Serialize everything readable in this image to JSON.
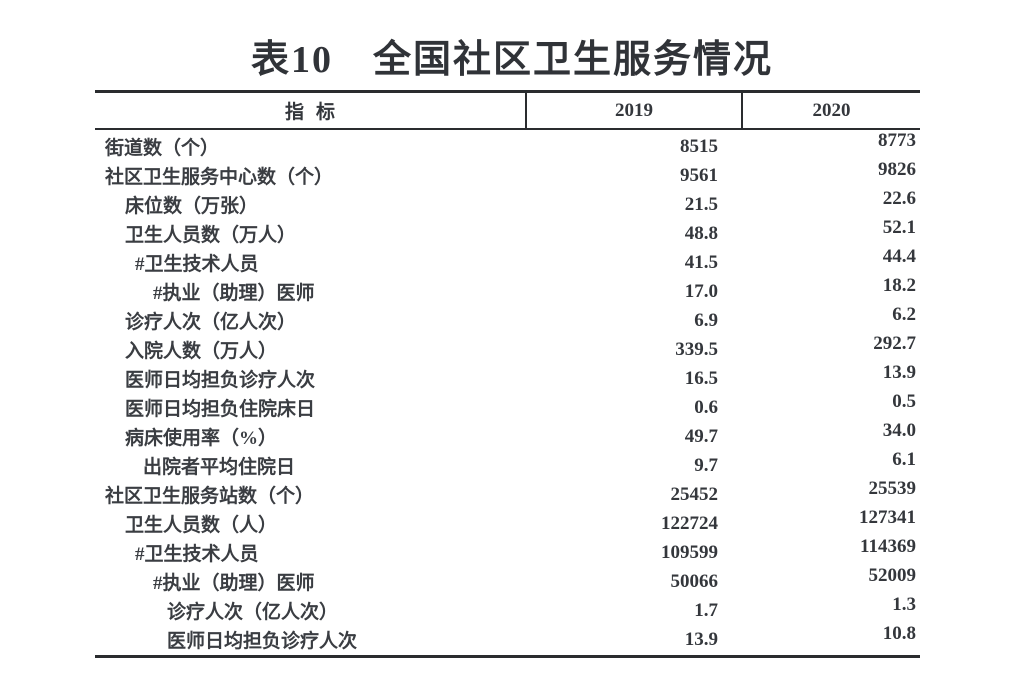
{
  "title": "表10　全国社区卫生服务情况",
  "table": {
    "columns": [
      "指标",
      "2019",
      "2020"
    ],
    "rows": [
      {
        "label": "街道数（个）",
        "indent": 0,
        "y2019": "8515",
        "y2020": "8773"
      },
      {
        "label": "社区卫生服务中心数（个）",
        "indent": 0,
        "y2019": "9561",
        "y2020": "9826"
      },
      {
        "label": "床位数（万张）",
        "indent": 1,
        "y2019": "21.5",
        "y2020": "22.6"
      },
      {
        "label": "卫生人员数（万人）",
        "indent": 1,
        "y2019": "48.8",
        "y2020": "52.1"
      },
      {
        "label": "#卫生技术人员",
        "indent": 2,
        "y2019": "41.5",
        "y2020": "44.4"
      },
      {
        "label": "#执业（助理）医师",
        "indent": 4,
        "y2019": "17.0",
        "y2020": "18.2"
      },
      {
        "label": "诊疗人次（亿人次）",
        "indent": 1,
        "y2019": "6.9",
        "y2020": "6.2"
      },
      {
        "label": "入院人数（万人）",
        "indent": 1,
        "y2019": "339.5",
        "y2020": "292.7"
      },
      {
        "label": "医师日均担负诊疗人次",
        "indent": 1,
        "y2019": "16.5",
        "y2020": "13.9"
      },
      {
        "label": "医师日均担负住院床日",
        "indent": 1,
        "y2019": "0.6",
        "y2020": "0.5"
      },
      {
        "label": "病床使用率（%）",
        "indent": 1,
        "y2019": "49.7",
        "y2020": "34.0"
      },
      {
        "label": "出院者平均住院日",
        "indent": 3,
        "y2019": "9.7",
        "y2020": "6.1"
      },
      {
        "label": "社区卫生服务站数（个）",
        "indent": 0,
        "y2019": "25452",
        "y2020": "25539"
      },
      {
        "label": "卫生人员数（人）",
        "indent": 1,
        "y2019": "122724",
        "y2020": "127341"
      },
      {
        "label": "#卫生技术人员",
        "indent": 2,
        "y2019": "109599",
        "y2020": "114369"
      },
      {
        "label": "#执业（助理）医师",
        "indent": 4,
        "y2019": "50066",
        "y2020": "52009"
      },
      {
        "label": "诊疗人次（亿人次）",
        "indent": 5,
        "y2019": "1.7",
        "y2020": "1.3"
      },
      {
        "label": "医师日均担负诊疗人次",
        "indent": 5,
        "y2019": "13.9",
        "y2020": "10.8"
      }
    ]
  }
}
